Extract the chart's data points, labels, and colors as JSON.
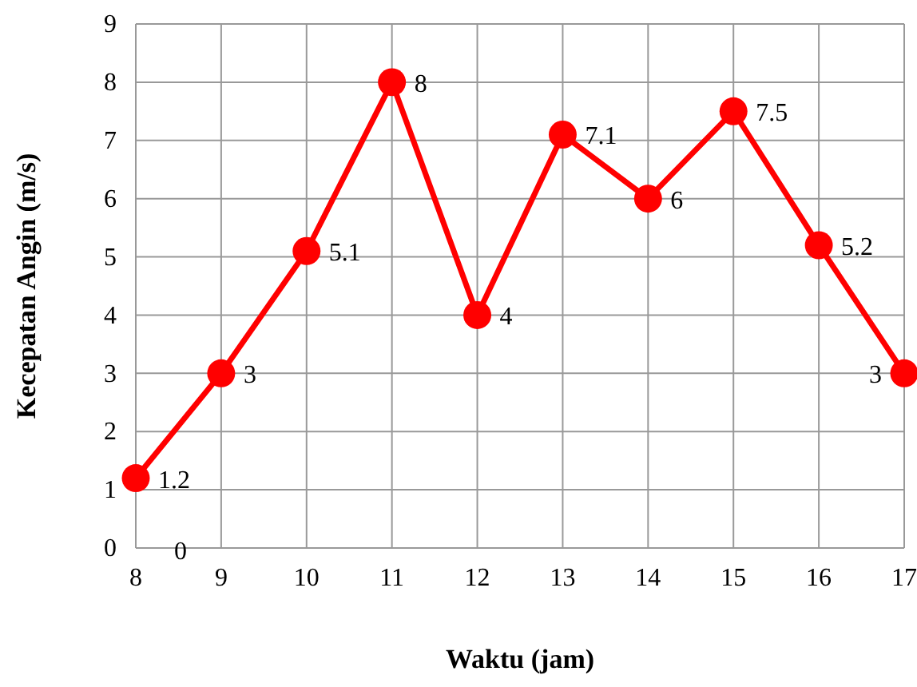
{
  "chart_data": {
    "type": "line",
    "xlabel": "Waktu (jam)",
    "ylabel": "Kecepatan Angin (m/s)",
    "x": [
      8,
      9,
      10,
      11,
      12,
      13,
      14,
      15,
      16,
      17
    ],
    "series": [
      {
        "color": "#ff0000",
        "values": [
          1.2,
          3,
          5.1,
          8,
          4,
          7.1,
          6,
          7.5,
          5.2,
          3
        ]
      }
    ],
    "xlim": [
      8,
      17
    ],
    "xticks": [
      8,
      9,
      10,
      11,
      12,
      13,
      14,
      15,
      16,
      17
    ],
    "ylim": [
      0,
      9
    ],
    "yticks": [
      0,
      1,
      2,
      3,
      4,
      5,
      6,
      7,
      8,
      9
    ],
    "grid": true,
    "marker": "circle",
    "line_style": "solid",
    "data_labels": true,
    "annotations": [
      "0"
    ]
  }
}
